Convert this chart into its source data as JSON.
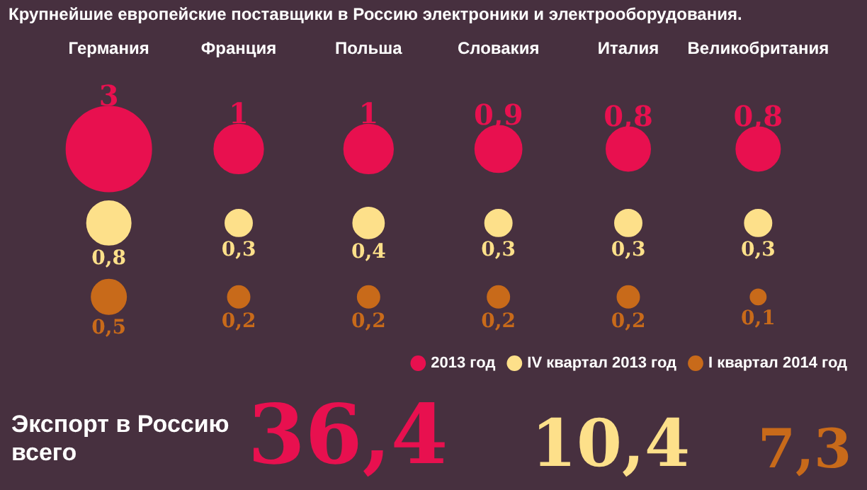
{
  "chart_data": {
    "type": "other",
    "title": "Крупнейшие европейские поставщики в Россию электроники и электрооборудования.",
    "categories": [
      "Германия",
      "Франция",
      "Польша",
      "Словакия",
      "Италия",
      "Великобритания"
    ],
    "series": [
      {
        "name": "2013 год",
        "color": "#e8104f",
        "values": [
          3,
          1,
          1,
          0.9,
          0.8,
          0.8
        ],
        "value_labels": [
          "3",
          "1",
          "1",
          "0,9",
          "0,8",
          "0,8"
        ]
      },
      {
        "name": "IV квартал 2013 год",
        "color": "#fde08a",
        "values": [
          0.8,
          0.3,
          0.4,
          0.3,
          0.3,
          0.3
        ],
        "value_labels": [
          "0,8",
          "0,3",
          "0,4",
          "0,3",
          "0,3",
          "0,3"
        ]
      },
      {
        "name": "I квартал 2014 год",
        "color": "#c86a1a",
        "values": [
          0.5,
          0.2,
          0.2,
          0.2,
          0.2,
          0.1
        ],
        "value_labels": [
          "0,5",
          "0,2",
          "0,2",
          "0,2",
          "0,2",
          "0,1"
        ]
      }
    ],
    "legend": "bottom right",
    "totals": [
      "36,4",
      "10,4",
      "7,3"
    ],
    "annotations": [
      "Экспорт в Россию всего"
    ]
  }
}
